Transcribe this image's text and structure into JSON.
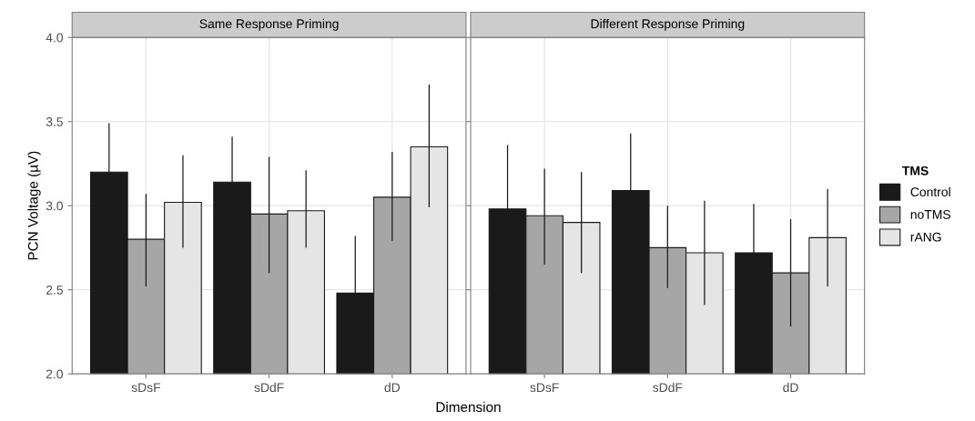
{
  "chart_data": [
    {
      "type": "bar",
      "title": "Same Response Priming",
      "xlabel": "Dimension",
      "ylabel": "PCN Voltage (µV)",
      "categories": [
        "sDsF",
        "sDdF",
        "dD"
      ],
      "ylim": [
        2.0,
        4.0
      ],
      "yticks": [
        {
          "value": 2.0,
          "label": "2.0"
        },
        {
          "value": 2.5,
          "label": "2.5"
        },
        {
          "value": 3.0,
          "label": "3.0"
        },
        {
          "value": 3.5,
          "label": "3.5"
        },
        {
          "value": 4.0,
          "label": "4.0"
        }
      ],
      "grid": true,
      "series": [
        {
          "color": "#1a1a1a",
          "values": [
            3.2,
            3.14,
            2.48
          ],
          "errors": [
            [
              3.2,
              3.49
            ],
            [
              3.14,
              3.41
            ],
            [
              2.48,
              2.82
            ]
          ]
        },
        {
          "color": "#a6a6a6",
          "values": [
            2.8,
            2.95,
            3.05
          ],
          "errors": [
            [
              2.52,
              3.07
            ],
            [
              2.6,
              3.29
            ],
            [
              2.79,
              3.32
            ]
          ]
        },
        {
          "color": "#e5e5e5",
          "values": [
            3.02,
            2.97,
            3.35
          ],
          "errors": [
            [
              2.75,
              3.3
            ],
            [
              2.75,
              3.21
            ],
            [
              2.99,
              3.72
            ]
          ]
        }
      ]
    },
    {
      "type": "bar",
      "title": "Different Response Priming",
      "categories": [
        "sDsF",
        "sDdF",
        "dD"
      ],
      "ylim": [
        2.0,
        4.0
      ],
      "tick_labels": "x",
      "grid": true,
      "legend": "right",
      "legend_title": "TMS",
      "series": [
        {
          "name": "Control",
          "color": "#1a1a1a",
          "values": [
            2.98,
            3.09,
            2.72
          ],
          "errors": [
            [
              2.98,
              3.36
            ],
            [
              3.09,
              3.43
            ],
            [
              2.72,
              3.01
            ]
          ]
        },
        {
          "name": "noTMS",
          "color": "#a6a6a6",
          "values": [
            2.94,
            2.75,
            2.6
          ],
          "errors": [
            [
              2.65,
              3.22
            ],
            [
              2.51,
              3.0
            ],
            [
              2.28,
              2.92
            ]
          ]
        },
        {
          "name": "rANG",
          "color": "#e5e5e5",
          "values": [
            2.9,
            2.72,
            2.81
          ],
          "errors": [
            [
              2.6,
              3.2
            ],
            [
              2.41,
              3.03
            ],
            [
              2.52,
              3.1
            ]
          ]
        }
      ]
    }
  ]
}
